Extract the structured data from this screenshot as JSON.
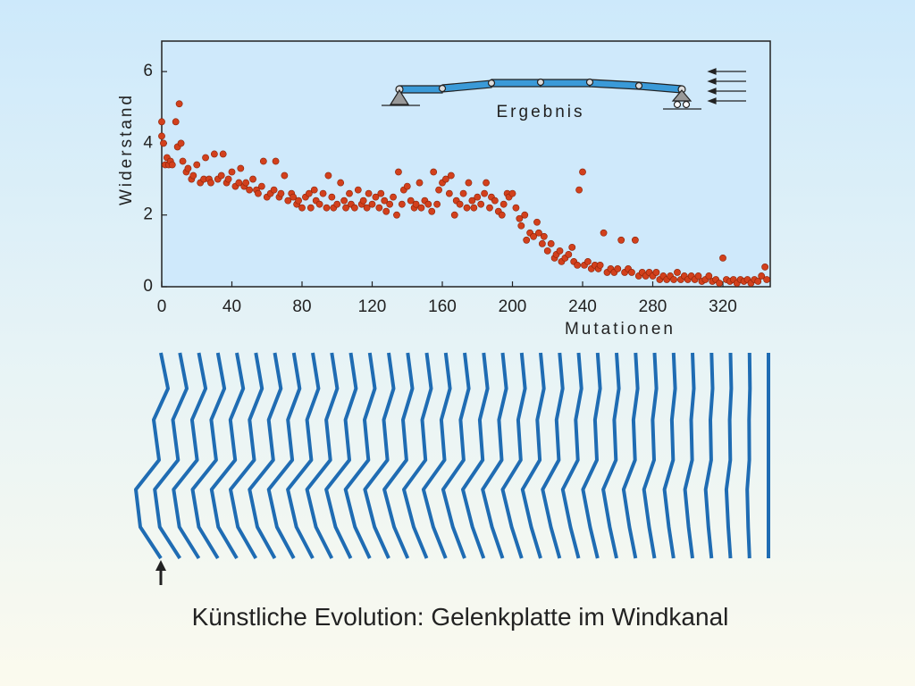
{
  "chart_data": {
    "type": "scatter",
    "xlabel": "Mutationen",
    "ylabel": "Widerstand",
    "annotation": "Ergebnis",
    "caption": "Künstliche Evolution:  Gelenkplatte im Windkanal",
    "color": "#d2401c",
    "xlim": [
      0,
      347
    ],
    "ylim": [
      0,
      6.85
    ],
    "xticks": [
      0,
      40,
      80,
      120,
      160,
      200,
      240,
      280,
      320
    ],
    "yticks": [
      0,
      2,
      4,
      6
    ],
    "x": [
      0,
      0,
      1,
      2,
      3,
      4,
      5,
      6,
      8,
      9,
      10,
      11,
      12,
      14,
      15,
      17,
      18,
      20,
      22,
      24,
      25,
      27,
      28,
      30,
      32,
      34,
      35,
      37,
      38,
      40,
      42,
      44,
      45,
      47,
      48,
      50,
      52,
      54,
      55,
      57,
      58,
      60,
      62,
      64,
      65,
      67,
      68,
      70,
      72,
      74,
      75,
      77,
      78,
      80,
      82,
      84,
      85,
      87,
      88,
      90,
      92,
      94,
      95,
      97,
      98,
      100,
      102,
      104,
      105,
      107,
      108,
      110,
      112,
      114,
      115,
      117,
      118,
      120,
      122,
      124,
      125,
      127,
      128,
      130,
      132,
      134,
      135,
      137,
      138,
      140,
      142,
      144,
      145,
      147,
      148,
      150,
      152,
      154,
      155,
      157,
      158,
      160,
      162,
      164,
      165,
      167,
      168,
      170,
      172,
      174,
      175,
      177,
      178,
      180,
      182,
      184,
      185,
      187,
      188,
      190,
      192,
      194,
      195,
      197,
      198,
      200,
      202,
      204,
      205,
      207,
      208,
      210,
      212,
      214,
      215,
      217,
      218,
      220,
      222,
      224,
      225,
      227,
      228,
      230,
      232,
      234,
      235,
      237,
      238,
      240,
      241,
      243,
      245,
      247,
      249,
      250,
      252,
      254,
      256,
      258,
      260,
      262,
      264,
      266,
      268,
      270,
      272,
      274,
      276,
      278,
      280,
      282,
      284,
      286,
      288,
      290,
      292,
      294,
      296,
      298,
      300,
      302,
      304,
      306,
      308,
      310,
      312,
      314,
      316,
      318,
      320,
      322,
      324,
      326,
      328,
      330,
      332,
      334,
      336,
      338,
      340,
      342,
      344,
      345
    ],
    "values": [
      4.6,
      4.2,
      4.0,
      3.4,
      3.6,
      3.4,
      3.5,
      3.4,
      4.6,
      3.9,
      5.1,
      4.0,
      3.5,
      3.2,
      3.3,
      3.0,
      3.1,
      3.4,
      2.9,
      3.0,
      3.6,
      3.0,
      2.9,
      3.7,
      3.0,
      3.1,
      3.7,
      2.9,
      3.0,
      3.2,
      2.8,
      2.9,
      3.3,
      2.8,
      2.9,
      2.7,
      3.0,
      2.7,
      2.6,
      2.8,
      3.5,
      2.5,
      2.6,
      2.7,
      3.5,
      2.5,
      2.6,
      3.1,
      2.4,
      2.6,
      2.5,
      2.3,
      2.4,
      2.2,
      2.5,
      2.6,
      2.2,
      2.7,
      2.4,
      2.3,
      2.6,
      2.2,
      3.1,
      2.5,
      2.2,
      2.3,
      2.9,
      2.4,
      2.2,
      2.6,
      2.3,
      2.2,
      2.7,
      2.3,
      2.4,
      2.2,
      2.6,
      2.3,
      2.5,
      2.2,
      2.6,
      2.4,
      2.1,
      2.3,
      2.5,
      2.0,
      3.2,
      2.3,
      2.7,
      2.8,
      2.4,
      2.2,
      2.3,
      2.9,
      2.2,
      2.4,
      2.3,
      2.1,
      3.2,
      2.3,
      2.7,
      2.9,
      3.0,
      2.6,
      3.1,
      2.0,
      2.4,
      2.3,
      2.6,
      2.2,
      2.9,
      2.4,
      2.2,
      2.5,
      2.3,
      2.6,
      2.9,
      2.2,
      2.5,
      2.4,
      2.1,
      2.0,
      2.3,
      2.6,
      2.5,
      2.6,
      2.2,
      1.9,
      1.7,
      2.0,
      1.3,
      1.5,
      1.4,
      1.8,
      1.5,
      1.2,
      1.4,
      1.0,
      1.2,
      0.8,
      0.9,
      1.0,
      0.7,
      0.8,
      0.9,
      1.1,
      0.7,
      0.6,
      2.7,
      3.2,
      0.6,
      0.7,
      0.5,
      0.6,
      0.5,
      0.6,
      1.5,
      0.4,
      0.5,
      0.4,
      0.5,
      1.3,
      0.4,
      0.5,
      0.4,
      1.3,
      0.3,
      0.4,
      0.3,
      0.4,
      0.3,
      0.4,
      0.2,
      0.3,
      0.2,
      0.3,
      0.2,
      0.4,
      0.2,
      0.3,
      0.2,
      0.3,
      0.2,
      0.3,
      0.15,
      0.2,
      0.3,
      0.15,
      0.2,
      0.1,
      0.8,
      0.2,
      0.15,
      0.2,
      0.1,
      0.2,
      0.15,
      0.2,
      0.1,
      0.2,
      0.15,
      0.3,
      0.55,
      0.2
    ]
  }
}
